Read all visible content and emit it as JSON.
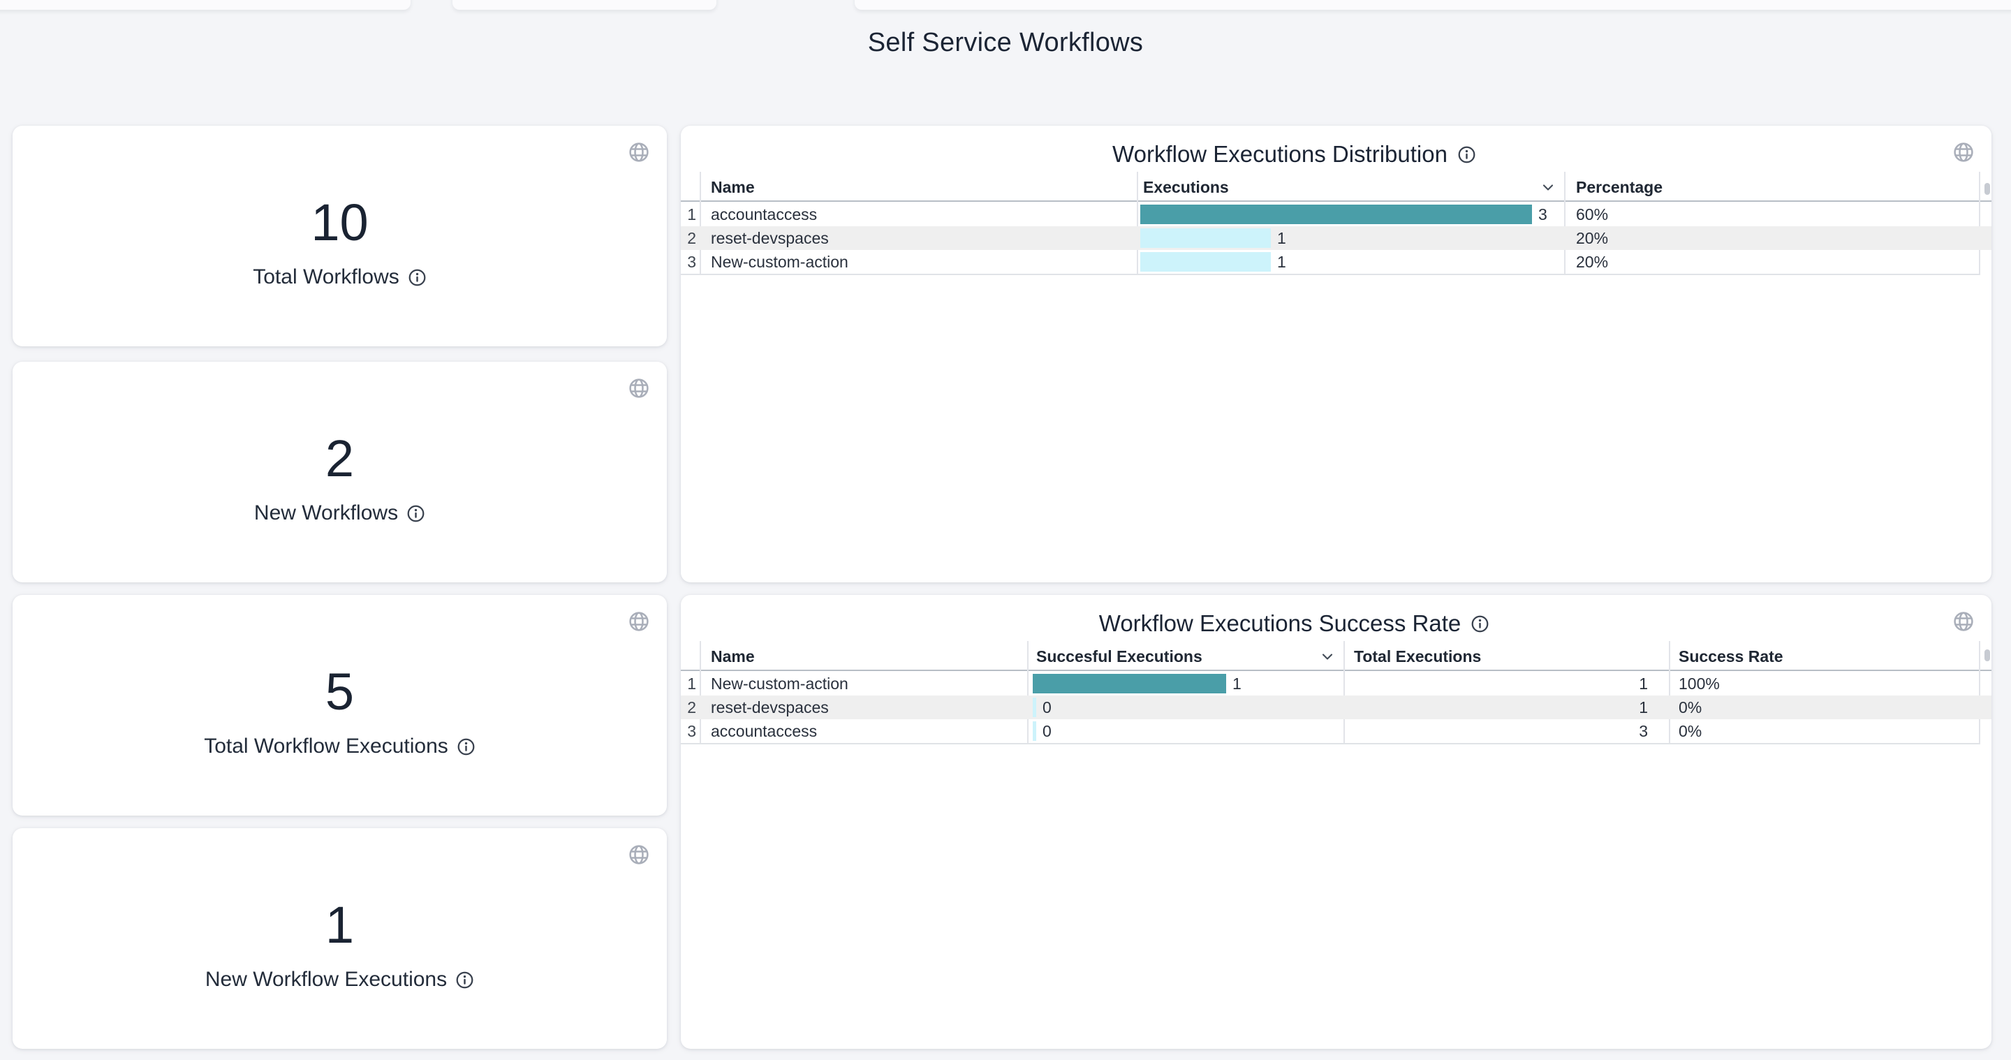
{
  "page": {
    "title": "Self Service Workflows"
  },
  "colors": {
    "bar_primary_teal": "#4a9ea8",
    "bar_secondary_cyan": "#cdf3fb",
    "row_stripe": "#efefef",
    "page_background": "#f4f5f8",
    "text_dark": "#1b2434"
  },
  "icons": {
    "card_action": "globe",
    "label_help": "info-circle",
    "sort_indicator": "chevron-down"
  },
  "stat_cards": [
    {
      "value": "10",
      "label": "Total Workflows"
    },
    {
      "value": "2",
      "label": "New Workflows"
    },
    {
      "value": "5",
      "label": "Total Workflow Executions"
    },
    {
      "value": "1",
      "label": "New Workflow Executions"
    }
  ],
  "tables": [
    {
      "title": "Workflow Executions Distribution",
      "columns": {
        "name": "Name",
        "executions": "Executions",
        "percentage": "Percentage"
      },
      "sorted_by": "Executions",
      "rows": [
        {
          "index": "1",
          "name": "accountaccess",
          "executions": 3,
          "percentage": "60%"
        },
        {
          "index": "2",
          "name": "reset-devspaces",
          "executions": 1,
          "percentage": "20%"
        },
        {
          "index": "3",
          "name": "New-custom-action",
          "executions": 1,
          "percentage": "20%"
        }
      ]
    },
    {
      "title": "Workflow Executions Success Rate",
      "columns": {
        "name": "Name",
        "successful": "Succesful Executions",
        "total": "Total Executions",
        "rate": "Success Rate"
      },
      "sorted_by": "Succesful Executions",
      "rows": [
        {
          "index": "1",
          "name": "New-custom-action",
          "successful": 1,
          "total": "1",
          "rate": "100%"
        },
        {
          "index": "2",
          "name": "reset-devspaces",
          "successful": 0,
          "total": "1",
          "rate": "0%"
        },
        {
          "index": "3",
          "name": "accountaccess",
          "successful": 0,
          "total": "3",
          "rate": "0%"
        }
      ]
    }
  ]
}
